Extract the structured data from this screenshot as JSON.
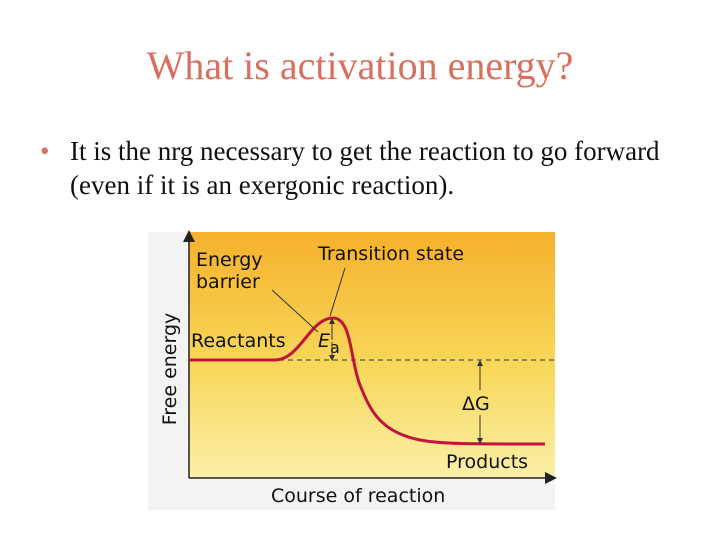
{
  "slide": {
    "title": "What is activation energy?",
    "bullets": [
      "It is the nrg necessary to get the reaction to go forward (even if it is an exergonic reaction)."
    ]
  },
  "diagram": {
    "energy_barrier": "Energy barrier",
    "transition_state": "Transition state",
    "reactants": "Reactants",
    "activation_energy": {
      "symbol": "E",
      "subscript": "a"
    },
    "delta_g": "ΔG",
    "products": "Products",
    "y_axis": "Free energy",
    "x_axis": "Course of reaction"
  }
}
